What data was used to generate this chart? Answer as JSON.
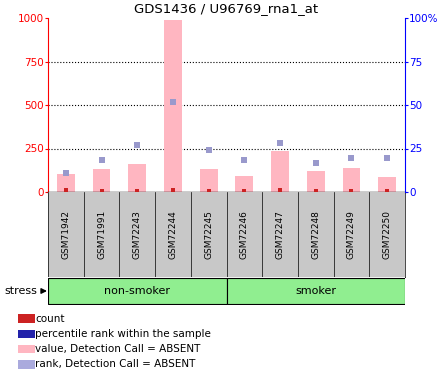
{
  "title": "GDS1436 / U96769_rna1_at",
  "samples": [
    "GSM71942",
    "GSM71991",
    "GSM72243",
    "GSM72244",
    "GSM72245",
    "GSM72246",
    "GSM72247",
    "GSM72248",
    "GSM72249",
    "GSM72250"
  ],
  "group_label": "stress",
  "non_smoker_count": 5,
  "smoker_count": 5,
  "non_smoker_label": "non-smoker",
  "smoker_label": "smoker",
  "pink_bars": [
    105,
    135,
    160,
    990,
    135,
    90,
    235,
    120,
    140,
    85
  ],
  "blue_sq_y": [
    110,
    185,
    270,
    520,
    240,
    185,
    280,
    165,
    195,
    195
  ],
  "red_sq_y": [
    10,
    8,
    8,
    12,
    8,
    8,
    10,
    8,
    8,
    8
  ],
  "ylim_left": [
    0,
    1000
  ],
  "ylim_right": [
    0,
    100
  ],
  "yticks_left": [
    0,
    250,
    500,
    750,
    1000
  ],
  "yticks_right": [
    0,
    25,
    50,
    75,
    100
  ],
  "ytick_labels_left": [
    "0",
    "250",
    "500",
    "750",
    "1000"
  ],
  "ytick_labels_right": [
    "0",
    "25",
    "50",
    "75",
    "100%"
  ],
  "pink_bar_color": "#FFB6C1",
  "blue_sq_color": "#9999CC",
  "red_sq_color": "#CC2222",
  "label_bg_color": "#C8C8C8",
  "group_bg_color": "#90EE90",
  "legend_colors": [
    "#CC2222",
    "#2222AA",
    "#FFB6C1",
    "#AAAADD"
  ],
  "legend_labels": [
    "count",
    "percentile rank within the sample",
    "value, Detection Call = ABSENT",
    "rank, Detection Call = ABSENT"
  ]
}
